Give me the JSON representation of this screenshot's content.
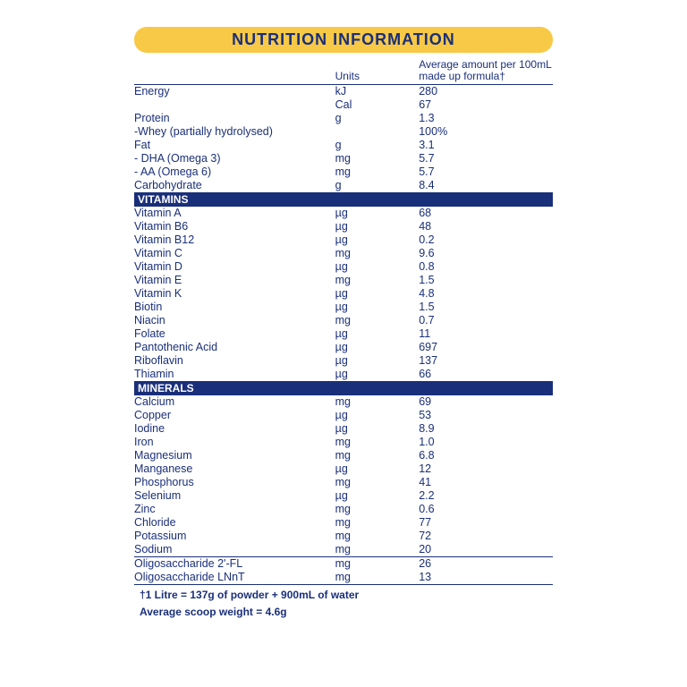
{
  "title": "NUTRITION INFORMATION",
  "columns": {
    "units": "Units",
    "value": "Average amount per 100mL made up formula†"
  },
  "top": [
    {
      "name": "Energy",
      "unit": "kJ",
      "value": "280",
      "indent": 0
    },
    {
      "name": "",
      "unit": "Cal",
      "value": "67",
      "indent": 0
    },
    {
      "name": "Protein",
      "unit": "g",
      "value": "1.3",
      "indent": 0
    },
    {
      "name": "-Whey (partially hydrolysed)",
      "unit": "",
      "value": "100%",
      "indent": 1
    },
    {
      "name": "Fat",
      "unit": "g",
      "value": "3.1",
      "indent": 0
    },
    {
      "name": "- DHA (Omega 3)",
      "unit": "mg",
      "value": "5.7",
      "indent": 2
    },
    {
      "name": "- AA (Omega 6)",
      "unit": "mg",
      "value": "5.7",
      "indent": 2
    },
    {
      "name": "Carbohydrate",
      "unit": "g",
      "value": "8.4",
      "indent": 0
    }
  ],
  "vitamins_label": "VITAMINS",
  "vitamins": [
    {
      "name": "Vitamin A",
      "unit": "µg",
      "value": "68"
    },
    {
      "name": "Vitamin B6",
      "unit": "µg",
      "value": "48"
    },
    {
      "name": "Vitamin B12",
      "unit": "µg",
      "value": "0.2"
    },
    {
      "name": "Vitamin C",
      "unit": "mg",
      "value": "9.6"
    },
    {
      "name": "Vitamin D",
      "unit": "µg",
      "value": "0.8"
    },
    {
      "name": "Vitamin E",
      "unit": "mg",
      "value": "1.5"
    },
    {
      "name": "Vitamin K",
      "unit": "µg",
      "value": "4.8"
    },
    {
      "name": "Biotin",
      "unit": "µg",
      "value": "1.5"
    },
    {
      "name": "Niacin",
      "unit": "mg",
      "value": "0.7"
    },
    {
      "name": "Folate",
      "unit": "µg",
      "value": "11"
    },
    {
      "name": "Pantothenic Acid",
      "unit": "µg",
      "value": "697"
    },
    {
      "name": "Riboflavin",
      "unit": "µg",
      "value": "137"
    },
    {
      "name": "Thiamin",
      "unit": "µg",
      "value": "66"
    }
  ],
  "minerals_label": "MINERALS",
  "minerals": [
    {
      "name": "Calcium",
      "unit": "mg",
      "value": "69"
    },
    {
      "name": "Copper",
      "unit": "µg",
      "value": "53"
    },
    {
      "name": "Iodine",
      "unit": "µg",
      "value": "8.9"
    },
    {
      "name": "Iron",
      "unit": "mg",
      "value": "1.0"
    },
    {
      "name": "Magnesium",
      "unit": "mg",
      "value": "6.8"
    },
    {
      "name": "Manganese",
      "unit": "µg",
      "value": "12"
    },
    {
      "name": "Phosphorus",
      "unit": "mg",
      "value": "41"
    },
    {
      "name": "Selenium",
      "unit": "µg",
      "value": "2.2"
    },
    {
      "name": "Zinc",
      "unit": "mg",
      "value": "0.6"
    },
    {
      "name": "Chloride",
      "unit": "mg",
      "value": "77"
    },
    {
      "name": "Potassium",
      "unit": "mg",
      "value": "72"
    },
    {
      "name": "Sodium",
      "unit": "mg",
      "value": "20"
    }
  ],
  "oligos": [
    {
      "name": "Oligosaccharide 2'-FL",
      "unit": "mg",
      "value": "26"
    },
    {
      "name": "Oligosaccharide LNnT",
      "unit": "mg",
      "value": "13"
    }
  ],
  "footnote1": "†1 Litre = 137g of powder + 900mL of water",
  "footnote2": "Average scoop weight = 4.6g",
  "colors": {
    "accent_blue": "#1a2f7a",
    "accent_yellow": "#f7c947",
    "background": "#ffffff"
  }
}
